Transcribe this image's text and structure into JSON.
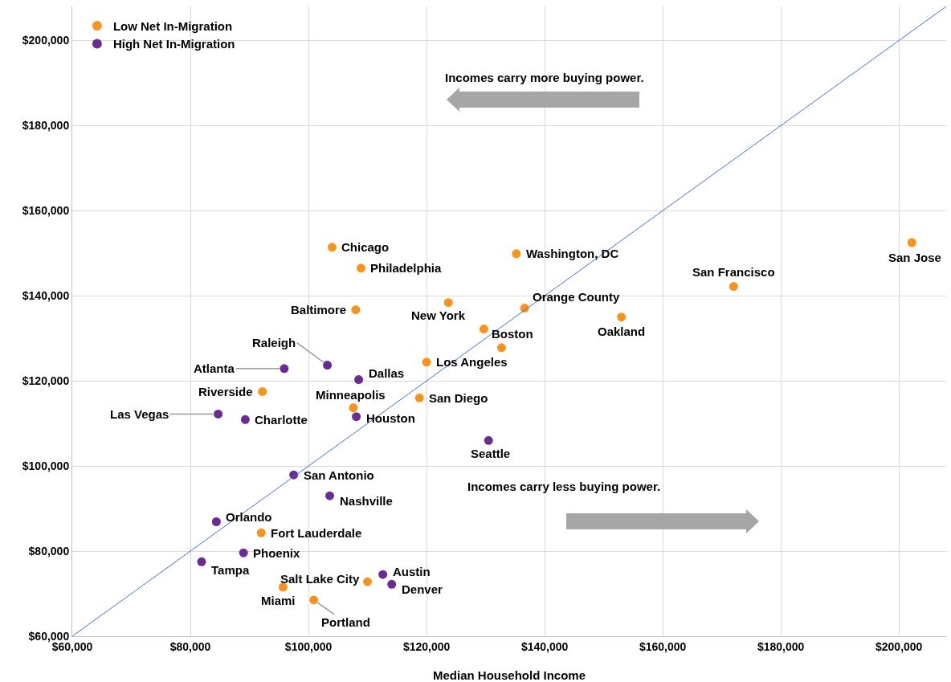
{
  "chart_data": {
    "type": "scatter",
    "xlabel": "Median Household Income",
    "legend": "top left",
    "grid": true,
    "xlim": [
      60000,
      208000
    ],
    "ylim": [
      60000,
      208000
    ],
    "xticks": [
      {
        "value": 60000,
        "label": "$60,000"
      },
      {
        "value": 80000,
        "label": "$80,000"
      },
      {
        "value": 100000,
        "label": "$100,000"
      },
      {
        "value": 120000,
        "label": "$120,000"
      },
      {
        "value": 140000,
        "label": "$140,000"
      },
      {
        "value": 160000,
        "label": "$160,000"
      },
      {
        "value": 180000,
        "label": "$180,000"
      },
      {
        "value": 200000,
        "label": "$200,000"
      }
    ],
    "yticks": [
      {
        "value": 60000,
        "label": "$60,000"
      },
      {
        "value": 80000,
        "label": "$80,000"
      },
      {
        "value": 100000,
        "label": "$100,000"
      },
      {
        "value": 120000,
        "label": "$120,000"
      },
      {
        "value": 140000,
        "label": "$140,000"
      },
      {
        "value": 160000,
        "label": "$160,000"
      },
      {
        "value": 180000,
        "label": "$180,000"
      },
      {
        "value": 200000,
        "label": "$200,000"
      }
    ],
    "series": [
      {
        "name": "Low Net In-Migration",
        "color": "#f7931e",
        "x": [
          104000,
          108900,
          135200,
          202200,
          172000,
          136600,
          123700,
          108000,
          129700,
          153000,
          132700,
          120000,
          92200,
          107600,
          118800,
          92000,
          95700,
          110000,
          100900
        ],
        "values": [
          151400,
          146500,
          149900,
          152500,
          142200,
          137100,
          138400,
          136700,
          132200,
          135000,
          127800,
          124400,
          117500,
          113700,
          116000,
          84300,
          71500,
          72800,
          68500
        ]
      },
      {
        "name": "High Net In-Migration",
        "color": "#6a2c91",
        "x": [
          103200,
          95900,
          108500,
          84700,
          89300,
          108100,
          130500,
          97500,
          103600,
          84400,
          89000,
          81900,
          112600,
          114100
        ],
        "values": [
          123700,
          122900,
          120300,
          112200,
          110900,
          111600,
          106000,
          97900,
          93000,
          86900,
          79600,
          77500,
          74500,
          72200
        ]
      },
      {
        "type": "line",
        "color": "#4472c4",
        "x": [
          60000,
          208000
        ],
        "values": [
          60000,
          208000
        ]
      }
    ],
    "annotations": [
      {
        "text": "Chicago",
        "x": 104000,
        "y": 151400
      },
      {
        "text": "Philadelphia",
        "x": 108900,
        "y": 146500
      },
      {
        "text": "Washington, DC",
        "x": 135200,
        "y": 149900
      },
      {
        "text": "San Jose",
        "x": 202200,
        "y": 152500
      },
      {
        "text": "San Francisco",
        "x": 172000,
        "y": 142200
      },
      {
        "text": "Orange County",
        "x": 136600,
        "y": 137100
      },
      {
        "text": "New York",
        "x": 123700,
        "y": 138400
      },
      {
        "text": "Baltimore",
        "x": 108000,
        "y": 136700
      },
      {
        "text": "Boston",
        "x": 129700,
        "y": 132200
      },
      {
        "text": "Oakland",
        "x": 153000,
        "y": 135000
      },
      {
        "text": "Los Angeles",
        "x": 120000,
        "y": 124400
      },
      {
        "text": "Riverside",
        "x": 92200,
        "y": 117500
      },
      {
        "text": "Minneapolis",
        "x": 107600,
        "y": 113700
      },
      {
        "text": "San Diego",
        "x": 118800,
        "y": 116000
      },
      {
        "text": "Fort Lauderdale",
        "x": 92000,
        "y": 84300
      },
      {
        "text": "Miami",
        "x": 95700,
        "y": 71500
      },
      {
        "text": "Salt Lake City",
        "x": 110000,
        "y": 72800
      },
      {
        "text": "Portland",
        "x": 100900,
        "y": 68500
      },
      {
        "text": "Raleigh",
        "x": 103200,
        "y": 123700
      },
      {
        "text": "Atlanta",
        "x": 95900,
        "y": 122900
      },
      {
        "text": "Dallas",
        "x": 108500,
        "y": 120300
      },
      {
        "text": "Las Vegas",
        "x": 84700,
        "y": 112200
      },
      {
        "text": "Charlotte",
        "x": 89300,
        "y": 110900
      },
      {
        "text": "Houston",
        "x": 108100,
        "y": 111600
      },
      {
        "text": "Seattle",
        "x": 130500,
        "y": 106000
      },
      {
        "text": "San Antonio",
        "x": 97500,
        "y": 97900
      },
      {
        "text": "Nashville",
        "x": 103600,
        "y": 93000
      },
      {
        "text": "Orlando",
        "x": 84400,
        "y": 86900
      },
      {
        "text": "Phoenix",
        "x": 89000,
        "y": 79600
      },
      {
        "text": "Tampa",
        "x": 81900,
        "y": 77500
      },
      {
        "text": "Austin",
        "x": 112600,
        "y": 74500
      },
      {
        "text": "Denver",
        "x": 114100,
        "y": 72200
      },
      "Incomes carry more buying power.",
      "Incomes carry less buying power."
    ]
  }
}
